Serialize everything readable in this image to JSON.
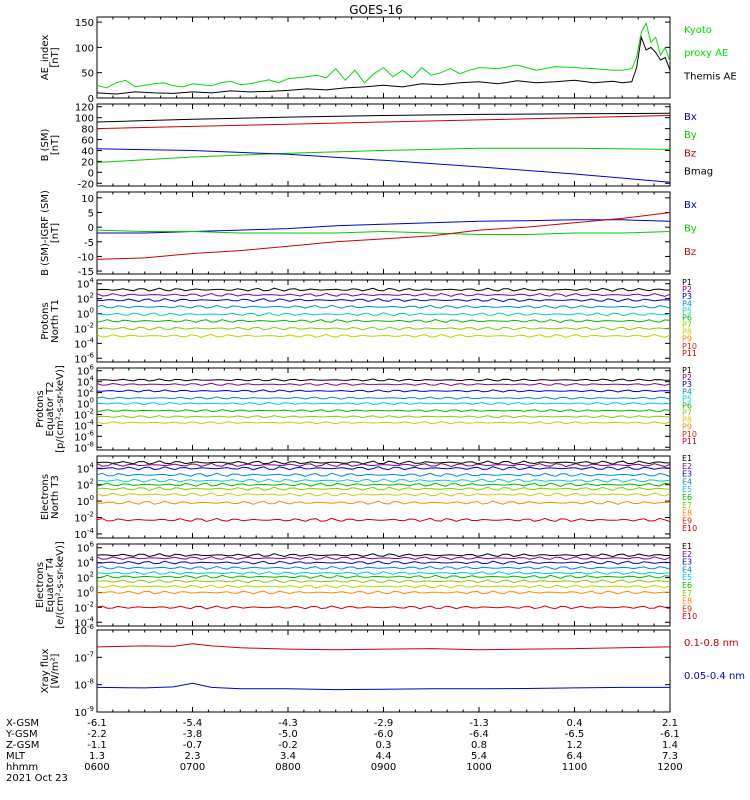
{
  "title": "GOES-16",
  "footer": {
    "rows": [
      {
        "label": "X-GSM",
        "values": [
          "-6.1",
          "-5.4",
          "-4.3",
          "-2.9",
          "-1.3",
          "0.4",
          "2.1"
        ]
      },
      {
        "label": "Y-GSM",
        "values": [
          "-2.2",
          "-3.8",
          "-5.0",
          "-6.0",
          "-6.4",
          "-6.5",
          "-6.1"
        ]
      },
      {
        "label": "Z-GSM",
        "values": [
          "-1.1",
          "-0.7",
          "-0.2",
          "0.3",
          "0.8",
          "1.2",
          "1.4"
        ]
      },
      {
        "label": "MLT",
        "values": [
          "1.3",
          "2.3",
          "3.4",
          "4.4",
          "5.4",
          "6.4",
          "7.3"
        ]
      },
      {
        "label": "hhmm",
        "values": [
          "0600",
          "0700",
          "0800",
          "0900",
          "1000",
          "1100",
          "1200"
        ]
      }
    ],
    "date": "2021 Oct 23"
  },
  "chart_data": [
    {
      "id": "ae",
      "type": "line",
      "ylabel": [
        "AE_index",
        "[nT]"
      ],
      "ylim": [
        0,
        160
      ],
      "yticks": [
        0,
        50,
        100,
        150
      ],
      "xlim": [
        6,
        12
      ],
      "legend": [
        {
          "text": "Kyoto",
          "color": "#00dd00"
        },
        {
          "text": "proxy AE",
          "color": "#00dd00"
        },
        {
          "text": "Themis AE",
          "color": "#000000"
        }
      ],
      "series": [
        {
          "color": "#00dd00",
          "x": [
            6.0,
            6.1,
            6.2,
            6.3,
            6.4,
            6.5,
            6.6,
            6.7,
            6.8,
            6.9,
            7.0,
            7.1,
            7.2,
            7.3,
            7.4,
            7.5,
            7.6,
            7.7,
            7.8,
            7.9,
            8.0,
            8.1,
            8.2,
            8.3,
            8.4,
            8.5,
            8.6,
            8.7,
            8.8,
            8.9,
            9.0,
            9.1,
            9.2,
            9.3,
            9.4,
            9.5,
            9.6,
            9.7,
            9.8,
            9.9,
            10.0,
            10.2,
            10.4,
            10.6,
            10.8,
            11.0,
            11.2,
            11.4,
            11.5,
            11.6,
            11.65,
            11.7,
            11.75,
            11.8,
            11.85,
            11.9,
            11.95,
            12.0
          ],
          "y": [
            25,
            20,
            30,
            35,
            22,
            25,
            28,
            30,
            24,
            22,
            28,
            26,
            24,
            30,
            33,
            26,
            28,
            32,
            36,
            30,
            38,
            40,
            42,
            45,
            40,
            58,
            35,
            55,
            30,
            48,
            60,
            42,
            55,
            40,
            60,
            45,
            50,
            58,
            48,
            55,
            60,
            58,
            65,
            55,
            62,
            60,
            58,
            55,
            55,
            58,
            80,
            130,
            148,
            110,
            120,
            85,
            100,
            72
          ]
        },
        {
          "color": "#000000",
          "x": [
            6.0,
            6.2,
            6.4,
            6.6,
            6.8,
            7.0,
            7.2,
            7.4,
            7.6,
            7.8,
            8.0,
            8.2,
            8.4,
            8.6,
            8.8,
            9.0,
            9.2,
            9.4,
            9.6,
            9.8,
            10.0,
            10.2,
            10.4,
            10.6,
            10.8,
            11.0,
            11.2,
            11.4,
            11.5,
            11.6,
            11.65,
            11.7,
            11.75,
            11.8,
            11.85,
            11.9,
            11.95,
            12.0
          ],
          "y": [
            10,
            8,
            12,
            10,
            9,
            12,
            10,
            14,
            12,
            13,
            15,
            18,
            16,
            20,
            22,
            25,
            22,
            28,
            26,
            30,
            32,
            28,
            34,
            30,
            32,
            35,
            30,
            33,
            30,
            32,
            60,
            120,
            95,
            100,
            90,
            75,
            80,
            55
          ]
        }
      ]
    },
    {
      "id": "bsm",
      "type": "line",
      "ylabel": [
        "B (SM)",
        "[nT]"
      ],
      "ylim": [
        -25,
        125
      ],
      "yticks": [
        -20,
        0,
        20,
        40,
        60,
        80,
        100,
        120
      ],
      "xlim": [
        6,
        12
      ],
      "legend": [
        {
          "text": "Bx",
          "color": "#0000cc"
        },
        {
          "text": "By",
          "color": "#00cc00"
        },
        {
          "text": "Bz",
          "color": "#cc0000"
        },
        {
          "text": "Bmag",
          "color": "#000000"
        }
      ],
      "series": [
        {
          "color": "#000000",
          "x": [
            6,
            7,
            8,
            9,
            10,
            11,
            12
          ],
          "y": [
            92,
            97,
            101,
            104,
            106,
            107,
            108
          ]
        },
        {
          "color": "#cc0000",
          "x": [
            6,
            7,
            8,
            9,
            10,
            11,
            12
          ],
          "y": [
            80,
            84,
            88,
            92,
            96,
            100,
            104
          ]
        },
        {
          "color": "#00cc00",
          "x": [
            6,
            7,
            8,
            9,
            10,
            11,
            12
          ],
          "y": [
            18,
            28,
            35,
            40,
            44,
            44,
            42
          ]
        },
        {
          "color": "#0000cc",
          "x": [
            6,
            7,
            8,
            9,
            10,
            11,
            12
          ],
          "y": [
            43,
            40,
            33,
            22,
            10,
            -3,
            -18
          ]
        }
      ]
    },
    {
      "id": "bigrf",
      "type": "line",
      "ylabel": [
        "B (SM)-IGRF (SM)",
        "[nT]"
      ],
      "ylim": [
        -16,
        12
      ],
      "yticks": [
        -15,
        -10,
        -5,
        0,
        5,
        10
      ],
      "xlim": [
        6,
        12
      ],
      "legend": [
        {
          "text": "Bx",
          "color": "#0000cc"
        },
        {
          "text": "By",
          "color": "#00cc00"
        },
        {
          "text": "Bz",
          "color": "#cc0000"
        }
      ],
      "series": [
        {
          "color": "#0000cc",
          "x": [
            6,
            6.5,
            7,
            7.5,
            8,
            8.5,
            9,
            9.5,
            10,
            10.5,
            11,
            11.5,
            12
          ],
          "y": [
            -2,
            -2,
            -1.5,
            -1,
            -0.5,
            0.5,
            1,
            1.5,
            2,
            2.2,
            2.5,
            2.5,
            2
          ]
        },
        {
          "color": "#00cc00",
          "x": [
            6,
            6.5,
            7,
            7.5,
            8,
            8.5,
            9,
            9.5,
            10,
            10.5,
            11,
            11.5,
            12
          ],
          "y": [
            -1,
            -1.5,
            -1.5,
            -2,
            -2,
            -2,
            -1.5,
            -2,
            -2.5,
            -2.5,
            -2,
            -2,
            -1.5
          ]
        },
        {
          "color": "#cc0000",
          "x": [
            6,
            6.5,
            7,
            7.5,
            8,
            8.5,
            9,
            9.5,
            10,
            10.5,
            11,
            11.5,
            12
          ],
          "y": [
            -11,
            -10.5,
            -9,
            -8,
            -6.5,
            -5,
            -4,
            -3,
            -1,
            0,
            1.5,
            3,
            5
          ]
        }
      ]
    },
    {
      "id": "pnorth",
      "type": "line",
      "yscale": "log",
      "ylabel": [
        "Protons",
        "North T1"
      ],
      "ylim": [
        -6.5,
        4.5
      ],
      "yticks": [
        -6,
        -4,
        -2,
        0,
        2,
        4
      ],
      "xlim": [
        6,
        12
      ],
      "legend": [
        {
          "text": "P1",
          "color": "#000000"
        },
        {
          "text": "P2",
          "color": "#880088"
        },
        {
          "text": "P3",
          "color": "#0000cc"
        },
        {
          "text": "P4",
          "color": "#0088dd"
        },
        {
          "text": "P5",
          "color": "#00cccc"
        },
        {
          "text": "P6",
          "color": "#00bb00"
        },
        {
          "text": "P7",
          "color": "#88cc00"
        },
        {
          "text": "P8",
          "color": "#cccc00"
        },
        {
          "text": "P9",
          "color": "#ff8800"
        },
        {
          "text": "P10",
          "color": "#dd2200"
        },
        {
          "text": "P11",
          "color": "#cc0000"
        }
      ],
      "series": [
        {
          "color": "#000000",
          "level": 3.2
        },
        {
          "color": "#880088",
          "level": 2.5
        },
        {
          "color": "#0000cc",
          "level": 1.8
        },
        {
          "color": "#0088dd",
          "level": 0.9
        },
        {
          "color": "#00cccc",
          "level": -0.1
        },
        {
          "color": "#00bb00",
          "level": -1.0
        },
        {
          "color": "#88cc00",
          "level": -2.0
        },
        {
          "color": "#cccc00",
          "level": -3.0
        }
      ]
    },
    {
      "id": "peq",
      "type": "line",
      "yscale": "log",
      "ylabel": [
        "Protons",
        "Equator T2",
        "[p/(cm²-s-sr-keV)]"
      ],
      "ylim": [
        -8.5,
        6.5
      ],
      "yticks": [
        -8,
        -6,
        -4,
        -2,
        0,
        2,
        4,
        6
      ],
      "xlim": [
        6,
        12
      ],
      "legend": [
        {
          "text": "P1",
          "color": "#000000"
        },
        {
          "text": "P2",
          "color": "#880088"
        },
        {
          "text": "P3",
          "color": "#0000cc"
        },
        {
          "text": "P4",
          "color": "#0088dd"
        },
        {
          "text": "P5",
          "color": "#00cccc"
        },
        {
          "text": "P6",
          "color": "#00bb00"
        },
        {
          "text": "P7",
          "color": "#88cc00"
        },
        {
          "text": "P8",
          "color": "#cccc00"
        },
        {
          "text": "P9",
          "color": "#ff8800"
        },
        {
          "text": "P10",
          "color": "#dd2200"
        },
        {
          "text": "P11",
          "color": "#cc0000"
        }
      ],
      "series": [
        {
          "color": "#000000",
          "level": 4.3
        },
        {
          "color": "#880088",
          "level": 3.5
        },
        {
          "color": "#0000cc",
          "level": 2.3
        },
        {
          "color": "#0088dd",
          "level": 1.0
        },
        {
          "color": "#00cccc",
          "level": 0.0
        },
        {
          "color": "#00bb00",
          "level": -1.3
        },
        {
          "color": "#88cc00",
          "level": -2.4
        },
        {
          "color": "#cccc00",
          "level": -3.5
        }
      ]
    },
    {
      "id": "enorth",
      "type": "line",
      "yscale": "log",
      "ylabel": [
        "Electrons",
        "North T3"
      ],
      "ylim": [
        -4.5,
        5.5
      ],
      "yticks": [
        -4,
        -2,
        0,
        2,
        4
      ],
      "xlim": [
        6,
        12
      ],
      "legend": [
        {
          "text": "E1",
          "color": "#000000"
        },
        {
          "text": "E2",
          "color": "#880088"
        },
        {
          "text": "E3",
          "color": "#0000cc"
        },
        {
          "text": "E4",
          "color": "#0088dd"
        },
        {
          "text": "E5",
          "color": "#00cccc"
        },
        {
          "text": "E6",
          "color": "#00bb00"
        },
        {
          "text": "E7",
          "color": "#88cc00"
        },
        {
          "text": "E8",
          "color": "#ff8800"
        },
        {
          "text": "E9",
          "color": "#dd2200"
        },
        {
          "text": "E10",
          "color": "#cc0000"
        }
      ],
      "series": [
        {
          "color": "#000000",
          "level": 4.7
        },
        {
          "color": "#880088",
          "level": 4.4
        },
        {
          "color": "#0000cc",
          "level": 4.0
        },
        {
          "color": "#0088dd",
          "level": 3.2
        },
        {
          "color": "#00cccc",
          "level": 2.5
        },
        {
          "color": "#00bb00",
          "level": 2.0
        },
        {
          "color": "#88cc00",
          "level": 1.5
        },
        {
          "color": "#cccc00",
          "level": 0.8
        },
        {
          "color": "#ff8800",
          "level": -0.2
        },
        {
          "color": "#cc0000",
          "level": -2.3
        }
      ]
    },
    {
      "id": "eeq",
      "type": "line",
      "yscale": "log",
      "ylabel": [
        "Electrons",
        "Equator T4",
        "[e/(cm²-s-sr-keV)]"
      ],
      "ylim": [
        -4.5,
        6.5
      ],
      "yticks": [
        -4,
        -2,
        0,
        2,
        4,
        6
      ],
      "xlim": [
        6,
        12
      ],
      "legend": [
        {
          "text": "E1",
          "color": "#000000"
        },
        {
          "text": "E2",
          "color": "#880088"
        },
        {
          "text": "E3",
          "color": "#0000cc"
        },
        {
          "text": "E4",
          "color": "#0088dd"
        },
        {
          "text": "E5",
          "color": "#00cccc"
        },
        {
          "text": "E6",
          "color": "#00bb00"
        },
        {
          "text": "E7",
          "color": "#88cc00"
        },
        {
          "text": "E8",
          "color": "#ff8800"
        },
        {
          "text": "E9",
          "color": "#dd2200"
        },
        {
          "text": "E10",
          "color": "#cc0000"
        }
      ],
      "series": [
        {
          "color": "#000000",
          "level": 5.0
        },
        {
          "color": "#880088",
          "level": 4.6
        },
        {
          "color": "#0000cc",
          "level": 4.0
        },
        {
          "color": "#0088dd",
          "level": 3.3
        },
        {
          "color": "#00cccc",
          "level": 2.6
        },
        {
          "color": "#00bb00",
          "level": 2.1
        },
        {
          "color": "#88cc00",
          "level": 1.5
        },
        {
          "color": "#cccc00",
          "level": 0.8
        },
        {
          "color": "#ff8800",
          "level": 0.0
        },
        {
          "color": "#cc0000",
          "level": -2.0
        }
      ]
    },
    {
      "id": "xray",
      "type": "line",
      "yscale": "log",
      "ylabel": [
        "Xray flux",
        "[W/m²]"
      ],
      "ylim": [
        -9,
        -6
      ],
      "yticks": [
        -9,
        -8,
        -7,
        -6
      ],
      "xlim": [
        6,
        12
      ],
      "legend": [
        {
          "text": "0.1-0.8 nm",
          "color": "#cc0000"
        },
        {
          "text": "0.05-0.4 nm",
          "color": "#0000cc"
        }
      ],
      "series": [
        {
          "color": "#cc0000",
          "x": [
            6,
            6.5,
            6.8,
            7,
            7.2,
            7.5,
            8,
            8.5,
            9,
            9.5,
            10,
            10.5,
            11,
            11.5,
            12
          ],
          "y": [
            -6.62,
            -6.58,
            -6.6,
            -6.5,
            -6.58,
            -6.65,
            -6.7,
            -6.72,
            -6.7,
            -6.68,
            -6.72,
            -6.7,
            -6.68,
            -6.65,
            -6.62
          ]
        },
        {
          "color": "#0000cc",
          "x": [
            6,
            6.5,
            6.8,
            7,
            7.2,
            7.5,
            8,
            8.5,
            9,
            9.5,
            10,
            10.5,
            11,
            11.5,
            12
          ],
          "y": [
            -8.1,
            -8.12,
            -8.08,
            -7.95,
            -8.1,
            -8.15,
            -8.15,
            -8.18,
            -8.17,
            -8.15,
            -8.15,
            -8.14,
            -8.12,
            -8.1,
            -8.1
          ]
        }
      ]
    }
  ]
}
